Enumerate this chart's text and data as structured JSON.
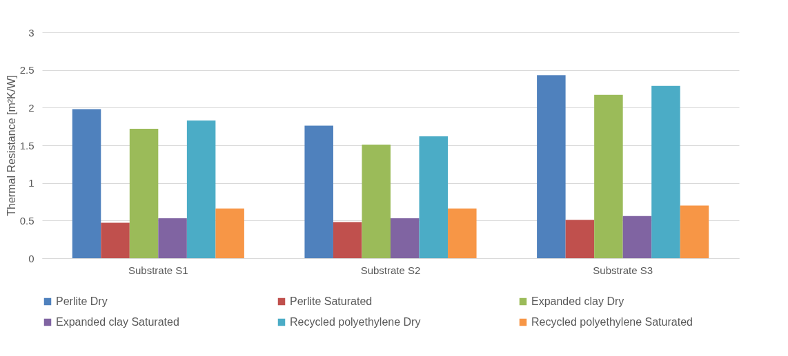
{
  "chart_data": {
    "type": "bar",
    "ylabel": "Thermal Resistance [m²K/W]",
    "categories": [
      "Substrate S1",
      "Substrate S2",
      "Substrate S3"
    ],
    "series": [
      {
        "name": "Perlite Dry",
        "color": "#4f81bd",
        "values": [
          1.98,
          1.76,
          2.43
        ]
      },
      {
        "name": "Perlite Saturated",
        "color": "#c0504d",
        "values": [
          0.47,
          0.48,
          0.51
        ]
      },
      {
        "name": "Expanded clay Dry",
        "color": "#9bbb59",
        "values": [
          1.72,
          1.51,
          2.17
        ]
      },
      {
        "name": "Expanded clay Saturated",
        "color": "#8064a2",
        "values": [
          0.53,
          0.53,
          0.56
        ]
      },
      {
        "name": "Recycled polyethylene Dry",
        "color": "#4bacc6",
        "values": [
          1.83,
          1.62,
          2.29
        ]
      },
      {
        "name": "Recycled polyethylene Saturated",
        "color": "#f79646",
        "values": [
          0.66,
          0.66,
          0.7
        ]
      }
    ],
    "ylim": [
      0,
      3
    ],
    "yticks": [
      0,
      0.5,
      1,
      1.5,
      2,
      2.5,
      3
    ],
    "grid": "y",
    "legend": "bottom"
  }
}
